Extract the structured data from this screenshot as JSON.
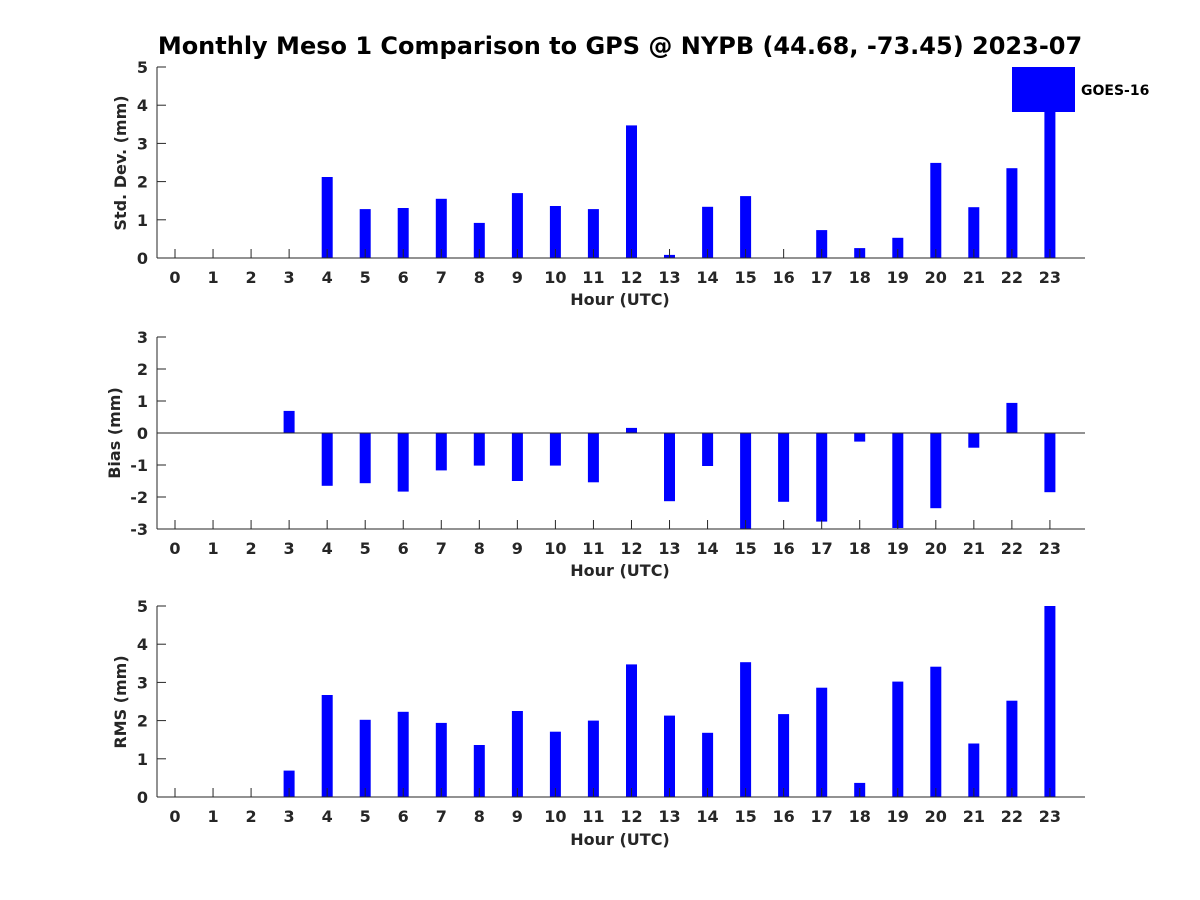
{
  "chart_data": {
    "title": "Monthly Meso 1 Comparison to GPS @ NYPB (44.68, -73.45) 2023-07",
    "bar_color": "#0000ff",
    "legend": {
      "label": "GOES-16",
      "placement": "top-right"
    },
    "panels": [
      {
        "type": "bar",
        "ylabel": "Std. Dev. (mm)",
        "xlabel": "Hour (UTC)",
        "ylim": [
          0,
          5
        ],
        "yticks": [
          "0",
          "1",
          "2",
          "3",
          "4",
          "5"
        ],
        "categories": [
          "0",
          "1",
          "2",
          "3",
          "4",
          "5",
          "6",
          "7",
          "8",
          "9",
          "10",
          "11",
          "12",
          "13",
          "14",
          "15",
          "16",
          "17",
          "18",
          "19",
          "20",
          "21",
          "22",
          "23"
        ],
        "values": [
          null,
          null,
          null,
          null,
          2.12,
          1.28,
          1.31,
          1.55,
          0.92,
          1.7,
          1.36,
          1.28,
          3.47,
          0.08,
          1.34,
          1.62,
          null,
          0.73,
          0.26,
          0.53,
          2.49,
          1.33,
          2.35,
          4.5
        ]
      },
      {
        "type": "bar",
        "ylabel": "Bias (mm)",
        "xlabel": "Hour (UTC)",
        "ylim": [
          -3,
          3
        ],
        "yticks": [
          "-3",
          "-2",
          "-1",
          "0",
          "1",
          "2",
          "3"
        ],
        "categories": [
          "0",
          "1",
          "2",
          "3",
          "4",
          "5",
          "6",
          "7",
          "8",
          "9",
          "10",
          "11",
          "12",
          "13",
          "14",
          "15",
          "16",
          "17",
          "18",
          "19",
          "20",
          "21",
          "22",
          "23"
        ],
        "values": [
          null,
          null,
          null,
          0.69,
          -1.65,
          -1.57,
          -1.83,
          -1.17,
          -1.02,
          -1.5,
          -1.02,
          -1.54,
          0.16,
          -2.13,
          -1.03,
          -3.0,
          -2.15,
          -2.77,
          -0.27,
          -2.97,
          -2.35,
          -0.46,
          0.94,
          -1.85
        ]
      },
      {
        "type": "bar",
        "ylabel": "RMS (mm)",
        "xlabel": "Hour (UTC)",
        "ylim": [
          0,
          5
        ],
        "yticks": [
          "0",
          "1",
          "2",
          "3",
          "4",
          "5"
        ],
        "categories": [
          "0",
          "1",
          "2",
          "3",
          "4",
          "5",
          "6",
          "7",
          "8",
          "9",
          "10",
          "11",
          "12",
          "13",
          "14",
          "15",
          "16",
          "17",
          "18",
          "19",
          "20",
          "21",
          "22",
          "23"
        ],
        "values": [
          null,
          null,
          null,
          0.69,
          2.67,
          2.02,
          2.23,
          1.94,
          1.36,
          2.25,
          1.71,
          2.0,
          3.47,
          2.13,
          1.68,
          3.53,
          2.17,
          2.86,
          0.37,
          3.02,
          3.41,
          1.4,
          2.52,
          5.0
        ]
      }
    ]
  }
}
